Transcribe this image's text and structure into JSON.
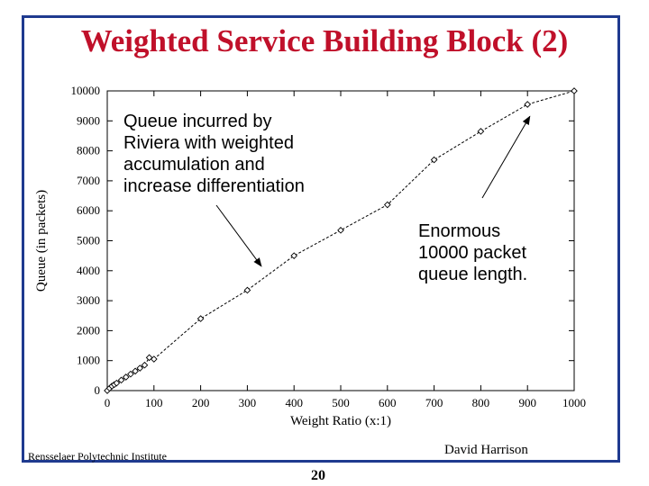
{
  "slide": {
    "title": "Weighted Service Building Block (2)",
    "footer_left": "Rensselaer Polytechnic Institute",
    "footer_right": "David Harrison",
    "page_number": "20",
    "frame_color": "#1f3a8f",
    "title_color": "#c0102a"
  },
  "chart_data": {
    "type": "line",
    "xlabel": "Weight Ratio (x:1)",
    "ylabel": "Queue (in packets)",
    "xlim": [
      0,
      1000
    ],
    "ylim": [
      0,
      10000
    ],
    "x_ticks": [
      0,
      100,
      200,
      300,
      400,
      500,
      600,
      700,
      800,
      900,
      1000
    ],
    "y_ticks": [
      0,
      1000,
      2000,
      3000,
      4000,
      5000,
      6000,
      7000,
      8000,
      9000,
      10000
    ],
    "series": [
      {
        "line_style": "dashed",
        "marker": "diamond",
        "x": [
          0,
          5,
          10,
          15,
          20,
          30,
          40,
          50,
          60,
          70,
          80,
          90,
          100,
          200,
          300,
          400,
          500,
          600,
          700,
          800,
          900,
          1000
        ],
        "y": [
          0,
          80,
          150,
          200,
          250,
          350,
          450,
          550,
          650,
          750,
          850,
          1100,
          1050,
          2400,
          3350,
          4500,
          5350,
          6200,
          7700,
          8650,
          9550,
          10000
        ]
      }
    ],
    "annotations": [
      {
        "lines": [
          "Queue incurred by",
          "Riviera with weighted",
          "accumulation and",
          "increase differentiation"
        ],
        "arrow_to": [
          330,
          4150
        ]
      },
      {
        "lines": [
          "Enormous",
          "10000 packet",
          "queue length."
        ],
        "arrow_to": [
          905,
          9150
        ]
      }
    ],
    "grid": false
  }
}
